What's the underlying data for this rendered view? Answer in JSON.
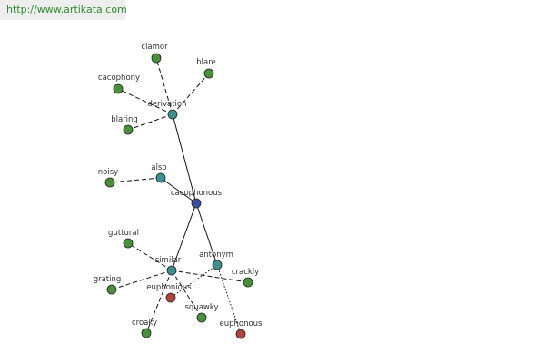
{
  "header": {
    "url": "http://www.artikata.com"
  },
  "graph": {
    "colors": {
      "center": "#3a4f9c",
      "hub": "#3d8f90",
      "leaf": "#4a8f3a",
      "antonym_leaf": "#b2433f",
      "edge": "#111111"
    },
    "nodes": [
      {
        "id": "cacophonous",
        "label": "cacophonous",
        "kind": "center"
      },
      {
        "id": "derivation",
        "label": "derivation",
        "kind": "hub"
      },
      {
        "id": "also",
        "label": "also",
        "kind": "hub"
      },
      {
        "id": "similar",
        "label": "similar",
        "kind": "hub"
      },
      {
        "id": "antonym",
        "label": "antonym",
        "kind": "hub"
      },
      {
        "id": "clamor",
        "label": "clamor",
        "kind": "leaf"
      },
      {
        "id": "blare",
        "label": "blare",
        "kind": "leaf"
      },
      {
        "id": "cacophony",
        "label": "cacophony",
        "kind": "leaf"
      },
      {
        "id": "blaring",
        "label": "blaring",
        "kind": "leaf"
      },
      {
        "id": "noisy",
        "label": "noisy",
        "kind": "leaf"
      },
      {
        "id": "guttural",
        "label": "guttural",
        "kind": "leaf"
      },
      {
        "id": "grating",
        "label": "grating",
        "kind": "leaf"
      },
      {
        "id": "crackly",
        "label": "crackly",
        "kind": "leaf"
      },
      {
        "id": "euphonious",
        "label": "euphonious",
        "kind": "antonym_leaf"
      },
      {
        "id": "squawky",
        "label": "squawky",
        "kind": "leaf"
      },
      {
        "id": "croaky",
        "label": "croaky",
        "kind": "leaf"
      },
      {
        "id": "euphonous",
        "label": "euphonous",
        "kind": "antonym_leaf"
      }
    ],
    "edges": [
      {
        "from": "cacophonous",
        "to": "derivation",
        "style": "solid"
      },
      {
        "from": "cacophonous",
        "to": "also",
        "style": "solid"
      },
      {
        "from": "cacophonous",
        "to": "similar",
        "style": "solid"
      },
      {
        "from": "cacophonous",
        "to": "antonym",
        "style": "solid"
      },
      {
        "from": "derivation",
        "to": "clamor",
        "style": "dashed"
      },
      {
        "from": "derivation",
        "to": "blare",
        "style": "dashed"
      },
      {
        "from": "derivation",
        "to": "cacophony",
        "style": "dashed"
      },
      {
        "from": "derivation",
        "to": "blaring",
        "style": "dashed"
      },
      {
        "from": "also",
        "to": "noisy",
        "style": "dashed"
      },
      {
        "from": "similar",
        "to": "guttural",
        "style": "dashed"
      },
      {
        "from": "similar",
        "to": "grating",
        "style": "dashed"
      },
      {
        "from": "similar",
        "to": "crackly",
        "style": "dashed"
      },
      {
        "from": "similar",
        "to": "squawky",
        "style": "dashed"
      },
      {
        "from": "similar",
        "to": "croaky",
        "style": "dashed"
      },
      {
        "from": "antonym",
        "to": "euphonious",
        "style": "dotted"
      },
      {
        "from": "antonym",
        "to": "euphonous",
        "style": "dotted"
      }
    ]
  }
}
